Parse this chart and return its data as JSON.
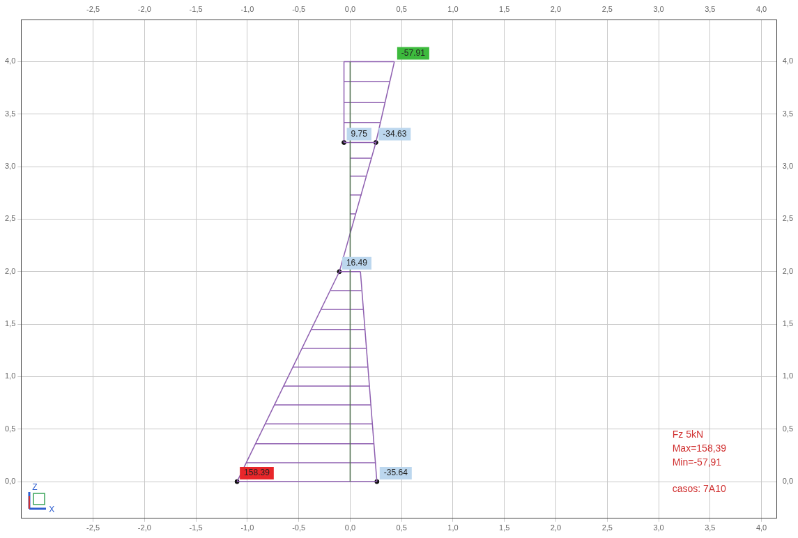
{
  "chart_data": {
    "type": "line",
    "series": [
      {
        "color": "#4f6f4f",
        "x": [
          0,
          0
        ],
        "values": [
          0,
          4
        ]
      },
      {
        "color": "#8e5fb0",
        "x": [
          -1.1,
          -0.105
        ],
        "values": [
          0,
          2.0
        ]
      },
      {
        "color": "#8e5fb0",
        "x": [
          -0.105,
          0.1
        ],
        "values": [
          2.0,
          2.0
        ]
      },
      {
        "color": "#8e5fb0",
        "x": [
          0.1,
          0.26
        ],
        "values": [
          2.0,
          0
        ]
      },
      {
        "color": "#8e5fb0",
        "x": [
          0.26,
          -1.1
        ],
        "values": [
          0,
          0
        ]
      },
      {
        "color": "#8e5fb0",
        "x": [
          -0.105,
          0.25,
          0.43
        ],
        "values": [
          2.0,
          3.23,
          4.0
        ]
      },
      {
        "color": "#8e5fb0",
        "x": [
          0.43,
          -0.06,
          -0.06,
          0.25
        ],
        "values": [
          4.0,
          4.0,
          3.23,
          3.23
        ]
      },
      {
        "color": "#8e5fb0",
        "x": [
          -1.01,
          0.25
        ],
        "values": [
          0.18,
          0.18
        ]
      },
      {
        "color": "#8e5fb0",
        "x": [
          -0.92,
          0.23
        ],
        "values": [
          0.36,
          0.36
        ]
      },
      {
        "color": "#8e5fb0",
        "x": [
          -0.83,
          0.22
        ],
        "values": [
          0.55,
          0.55
        ]
      },
      {
        "color": "#8e5fb0",
        "x": [
          -0.74,
          0.2
        ],
        "values": [
          0.73,
          0.73
        ]
      },
      {
        "color": "#8e5fb0",
        "x": [
          -0.65,
          0.19
        ],
        "values": [
          0.91,
          0.91
        ]
      },
      {
        "color": "#8e5fb0",
        "x": [
          -0.56,
          0.17
        ],
        "values": [
          1.09,
          1.09
        ]
      },
      {
        "color": "#8e5fb0",
        "x": [
          -0.47,
          0.16
        ],
        "values": [
          1.27,
          1.27
        ]
      },
      {
        "color": "#8e5fb0",
        "x": [
          -0.38,
          0.14
        ],
        "values": [
          1.45,
          1.45
        ]
      },
      {
        "color": "#8e5fb0",
        "x": [
          -0.28,
          0.13
        ],
        "values": [
          1.64,
          1.64
        ]
      },
      {
        "color": "#8e5fb0",
        "x": [
          -0.19,
          0.11
        ],
        "values": [
          1.82,
          1.82
        ]
      },
      {
        "color": "#8e5fb0",
        "x": [
          0,
          0.05
        ],
        "values": [
          2.55,
          2.55
        ]
      },
      {
        "color": "#8e5fb0",
        "x": [
          0,
          0.11
        ],
        "values": [
          2.73,
          2.73
        ]
      },
      {
        "color": "#8e5fb0",
        "x": [
          0,
          0.16
        ],
        "values": [
          2.91,
          2.91
        ]
      },
      {
        "color": "#8e5fb0",
        "x": [
          0,
          0.21
        ],
        "values": [
          3.08,
          3.08
        ]
      },
      {
        "color": "#8e5fb0",
        "x": [
          -0.06,
          0.29
        ],
        "values": [
          3.42,
          3.42
        ]
      },
      {
        "color": "#8e5fb0",
        "x": [
          -0.06,
          0.34
        ],
        "values": [
          3.61,
          3.61
        ]
      },
      {
        "color": "#8e5fb0",
        "x": [
          -0.06,
          0.39
        ],
        "values": [
          3.81,
          3.81
        ]
      },
      {
        "type": "scatter",
        "color": "#111111",
        "marker": "circle",
        "x": [
          -0.06,
          0.25,
          -0.105,
          -1.1,
          0.26
        ],
        "values": [
          3.23,
          3.23,
          2.0,
          0,
          0
        ]
      }
    ],
    "xlim": [
      -3.2,
      4.15
    ],
    "ylim": [
      -0.35,
      4.4
    ],
    "xticks": [
      {
        "value": -2.5,
        "label": "-2,5"
      },
      {
        "value": -2.0,
        "label": "-2,0"
      },
      {
        "value": -1.5,
        "label": "-1,5"
      },
      {
        "value": -1.0,
        "label": "-1,0"
      },
      {
        "value": -0.5,
        "label": "-0,5"
      },
      {
        "value": 0,
        "label": "0,0"
      },
      {
        "value": 0.5,
        "label": "0,5"
      },
      {
        "value": 1.0,
        "label": "1,0"
      },
      {
        "value": 1.5,
        "label": "1,5"
      },
      {
        "value": 2.0,
        "label": "2,0"
      },
      {
        "value": 2.5,
        "label": "2,5"
      },
      {
        "value": 3.0,
        "label": "3,0"
      },
      {
        "value": 3.5,
        "label": "3,5"
      },
      {
        "value": 4.0,
        "label": "4,0"
      }
    ],
    "x2lim": [
      -3.2,
      4.15
    ],
    "x2ticks": [
      {
        "value": -2.5,
        "label": "-2,5"
      },
      {
        "value": -2.0,
        "label": "-2,0"
      },
      {
        "value": -1.5,
        "label": "-1,5"
      },
      {
        "value": -1.0,
        "label": "-1,0"
      },
      {
        "value": -0.5,
        "label": "-0,5"
      },
      {
        "value": 0,
        "label": "0,0"
      },
      {
        "value": 0.5,
        "label": "0,5"
      },
      {
        "value": 1.0,
        "label": "1,0"
      },
      {
        "value": 1.5,
        "label": "1,5"
      },
      {
        "value": 2.0,
        "label": "2,0"
      },
      {
        "value": 2.5,
        "label": "2,5"
      },
      {
        "value": 3.0,
        "label": "3,0"
      },
      {
        "value": 3.5,
        "label": "3,5"
      },
      {
        "value": 4.0,
        "label": "4,0"
      }
    ],
    "yticks": [
      {
        "value": 0,
        "label": "0,0"
      },
      {
        "value": 0.5,
        "label": "0,5"
      },
      {
        "value": 1.0,
        "label": "1,0"
      },
      {
        "value": 1.5,
        "label": "1,5"
      },
      {
        "value": 2.0,
        "label": "2,0"
      },
      {
        "value": 2.5,
        "label": "2,5"
      },
      {
        "value": 3.0,
        "label": "3,0"
      },
      {
        "value": 3.5,
        "label": "3,5"
      },
      {
        "value": 4.0,
        "label": "4,0"
      }
    ],
    "y2lim": [
      -0.35,
      4.4
    ],
    "y2ticks": [
      {
        "value": 0,
        "label": "0,0"
      },
      {
        "value": 0.5,
        "label": "0,5"
      },
      {
        "value": 1.0,
        "label": "1,0"
      },
      {
        "value": 1.5,
        "label": "1,5"
      },
      {
        "value": 2.0,
        "label": "2,0"
      },
      {
        "value": 2.5,
        "label": "2,5"
      },
      {
        "value": 3.0,
        "label": "3,0"
      },
      {
        "value": 3.5,
        "label": "3,5"
      },
      {
        "value": 4.0,
        "label": "4,0"
      }
    ],
    "grid": true,
    "legend": false,
    "line_style": "solid",
    "annotations": [
      {
        "text": "-57.91",
        "x": 0.43,
        "y": 4.0
      },
      {
        "text": "9.75",
        "x": -0.06,
        "y": 3.23
      },
      {
        "text": "-34.63",
        "x": 0.25,
        "y": 3.23
      },
      {
        "text": "16.49",
        "x": -0.105,
        "y": 2.0
      },
      {
        "text": "158.39",
        "x": -1.1,
        "y": 0
      },
      {
        "text": "-35.64",
        "x": 0.26,
        "y": 0
      },
      "Fz 5kN",
      "Max=158,39",
      "Min=-57,91",
      "casos: 7A10",
      "Z",
      "X"
    ]
  }
}
